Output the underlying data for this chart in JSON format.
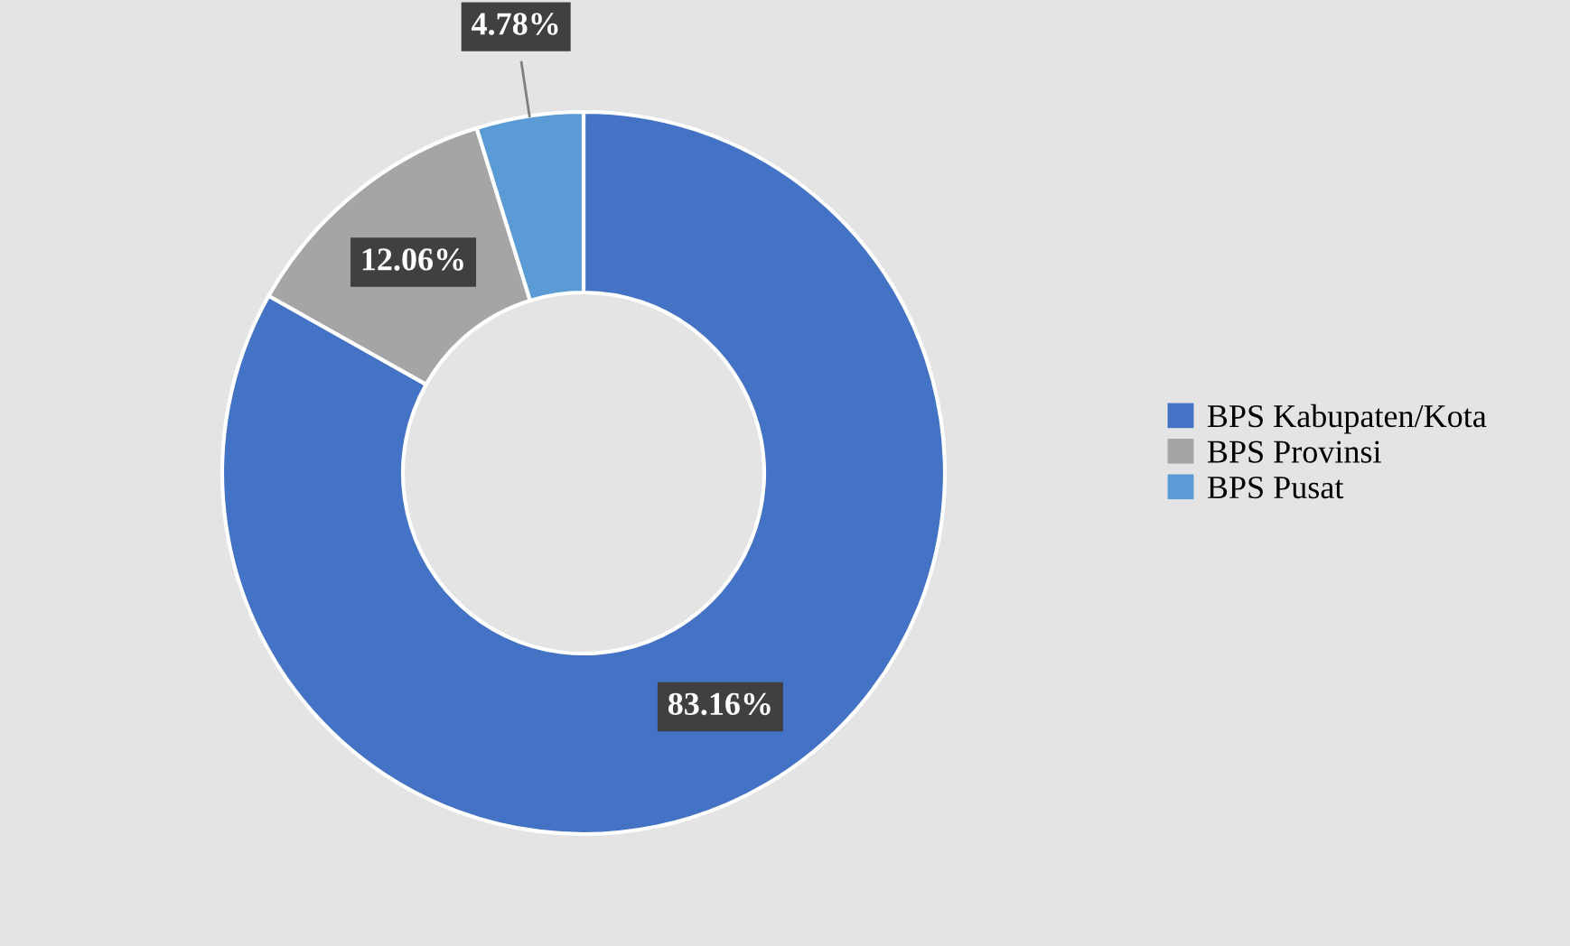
{
  "chart_data": {
    "type": "donut",
    "categories": [
      "BPS Kabupaten/Kota",
      "BPS Provinsi",
      "BPS Pusat"
    ],
    "values": [
      83.16,
      12.06,
      4.78
    ],
    "colors": [
      "#4472c4",
      "#a5a5a5",
      "#5b9bd5"
    ],
    "value_labels": [
      "83.16%",
      "12.06%",
      "4.78%"
    ],
    "legend": "right"
  }
}
